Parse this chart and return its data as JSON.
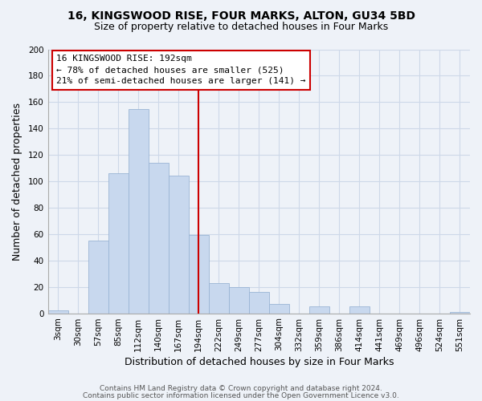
{
  "title1": "16, KINGSWOOD RISE, FOUR MARKS, ALTON, GU34 5BD",
  "title2": "Size of property relative to detached houses in Four Marks",
  "xlabel": "Distribution of detached houses by size in Four Marks",
  "ylabel": "Number of detached properties",
  "bar_labels": [
    "3sqm",
    "30sqm",
    "57sqm",
    "85sqm",
    "112sqm",
    "140sqm",
    "167sqm",
    "194sqm",
    "222sqm",
    "249sqm",
    "277sqm",
    "304sqm",
    "332sqm",
    "359sqm",
    "386sqm",
    "414sqm",
    "441sqm",
    "469sqm",
    "496sqm",
    "524sqm",
    "551sqm"
  ],
  "bar_values": [
    2,
    0,
    55,
    106,
    155,
    114,
    104,
    59,
    23,
    20,
    16,
    7,
    0,
    5,
    0,
    5,
    0,
    0,
    0,
    0,
    1
  ],
  "bar_color": "#c8d8ee",
  "bar_edge_color": "#9ab5d5",
  "vline_x": 7,
  "vline_color": "#cc0000",
  "annotation_title": "16 KINGSWOOD RISE: 192sqm",
  "annotation_line1": "← 78% of detached houses are smaller (525)",
  "annotation_line2": "21% of semi-detached houses are larger (141) →",
  "annotation_box_color": "#ffffff",
  "annotation_box_edge": "#cc0000",
  "ylim": [
    0,
    200
  ],
  "yticks": [
    0,
    20,
    40,
    60,
    80,
    100,
    120,
    140,
    160,
    180,
    200
  ],
  "footer1": "Contains HM Land Registry data © Crown copyright and database right 2024.",
  "footer2": "Contains public sector information licensed under the Open Government Licence v3.0.",
  "grid_color": "#cdd8e8",
  "background_color": "#eef2f8",
  "title1_fontsize": 10,
  "title2_fontsize": 9,
  "xlabel_fontsize": 9,
  "ylabel_fontsize": 9,
  "annotation_fontsize": 8,
  "footer_fontsize": 6.5,
  "tick_fontsize": 7.5
}
